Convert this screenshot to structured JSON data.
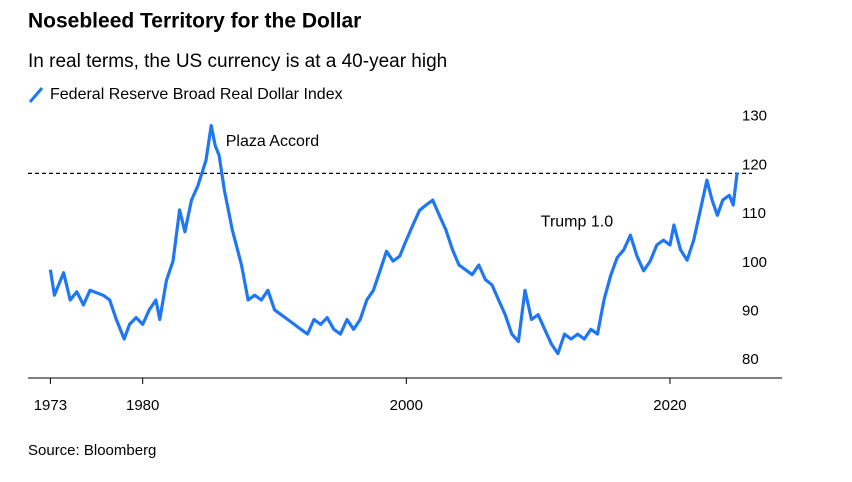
{
  "chart_data": {
    "type": "line",
    "title": "Nosebleed Territory for the Dollar",
    "subtitle": "In real terms, the US currency is at a 40-year high",
    "source": "Source: Bloomberg",
    "annotations": [
      {
        "text": "Plaza Accord",
        "x": 1986.3,
        "y": 126.5
      },
      {
        "text": "Trump 1.0",
        "x": 2010.2,
        "y": 110
      }
    ],
    "reference_line": {
      "value": 120,
      "style": "dashed",
      "color": "#000000"
    },
    "xlim": [
      1971.3,
      2028.5
    ],
    "xticks": [
      1973,
      1980,
      2000,
      2020
    ],
    "ylim": [
      78,
      133
    ],
    "yticks": [
      80,
      90,
      100,
      110,
      120,
      130
    ],
    "grid": false,
    "series": [
      {
        "name": "Federal Reserve Broad Real Dollar Index",
        "color": "#1f77f2",
        "x": [
          1973.0,
          1973.3,
          1974,
          1974.5,
          1975,
          1975.5,
          1976,
          1977,
          1977.5,
          1978,
          1978.6,
          1979,
          1979.5,
          1980,
          1980.5,
          1981,
          1981.3,
          1981.8,
          1982.3,
          1982.8,
          1983.2,
          1983.7,
          1984.2,
          1984.8,
          1985.2,
          1985.5,
          1985.8,
          1986.2,
          1986.8,
          1987.5,
          1988,
          1988.5,
          1989,
          1989.5,
          1990,
          1990.5,
          1991,
          1991.5,
          1992,
          1992.5,
          1993,
          1993.5,
          1994,
          1994.5,
          1995,
          1995.5,
          1996,
          1996.5,
          1997,
          1997.5,
          1998,
          1998.5,
          1999,
          1999.5,
          2000,
          2000.5,
          2001,
          2001.5,
          2002,
          2002.5,
          2003,
          2003.5,
          2004,
          2004.5,
          2005,
          2005.5,
          2006,
          2006.5,
          2007,
          2007.5,
          2008,
          2008.5,
          2009,
          2009.5,
          2010,
          2010.5,
          2011,
          2011.5,
          2012,
          2012.5,
          2013,
          2013.5,
          2014,
          2014.5,
          2015,
          2015.5,
          2016,
          2016.5,
          2017,
          2017.5,
          2018,
          2018.5,
          2019,
          2019.5,
          2020,
          2020.3,
          2020.8,
          2021.3,
          2021.8,
          2022.3,
          2022.8,
          2023.2,
          2023.6,
          2024,
          2024.5,
          2024.8,
          2025.1
        ],
        "values": [
          100.2,
          95,
          99.6,
          94,
          95.7,
          93,
          96,
          95,
          94,
          90,
          86,
          89,
          90.4,
          89,
          92,
          94,
          90,
          98,
          102,
          112.5,
          108,
          114.5,
          117.5,
          122.7,
          129.8,
          125.7,
          123.7,
          116.5,
          108.4,
          101.2,
          94,
          95,
          94,
          96,
          92,
          91,
          90,
          89,
          88,
          87,
          90,
          89,
          90.4,
          88,
          87,
          90,
          88,
          90,
          94,
          96,
          100,
          104,
          102,
          103,
          106.3,
          109.4,
          112.4,
          113.5,
          114.5,
          111.4,
          108.4,
          104.3,
          101.2,
          100.2,
          99.2,
          101.2,
          98.2,
          97.1,
          94,
          91,
          87,
          85.5,
          96,
          90,
          91,
          88,
          85,
          83,
          87,
          86,
          87,
          86,
          88,
          87,
          94,
          99,
          102.7,
          104.3,
          107.3,
          103,
          100,
          102,
          105.3,
          106.3,
          105.3,
          109.4,
          104.3,
          102.2,
          106.3,
          112.4,
          118.6,
          114.5,
          111.4,
          114.5,
          115.5,
          113.5,
          120.2
        ]
      }
    ]
  }
}
